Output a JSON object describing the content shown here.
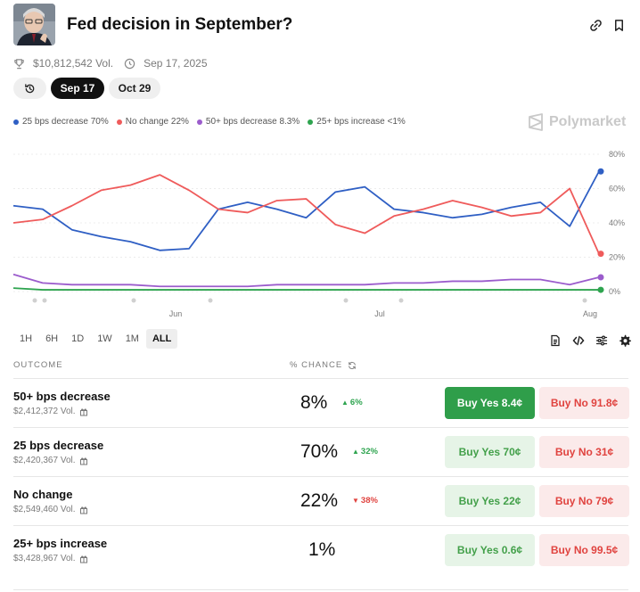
{
  "market": {
    "title": "Fed decision in September?",
    "volume": "$10,812,542 Vol.",
    "end_date": "Sep 17, 2025"
  },
  "date_tabs": [
    "Sep 17",
    "Oct 29"
  ],
  "legend": [
    {
      "label": "25 bps decrease 70%",
      "color": "#2f5fc4"
    },
    {
      "label": "No change 22%",
      "color": "#ef5b5b"
    },
    {
      "label": "50+ bps decrease 8.3%",
      "color": "#9b5ccc"
    },
    {
      "label": "25+ bps increase <1%",
      "color": "#2ea44f"
    }
  ],
  "brand": "Polymarket",
  "range_buttons": [
    "1H",
    "6H",
    "1D",
    "1W",
    "1M",
    "ALL"
  ],
  "range_active": "ALL",
  "table": {
    "col_outcome": "OUTCOME",
    "col_chance": "% CHANCE",
    "rows": [
      {
        "name": "50+ bps decrease",
        "volume": "$2,412,372 Vol.",
        "chance": "8%",
        "change": "6%",
        "direction": "up",
        "yes_label": "Buy Yes 8.4¢",
        "no_label": "Buy No 91.8¢"
      },
      {
        "name": "25 bps decrease",
        "volume": "$2,420,367 Vol.",
        "chance": "70%",
        "change": "32%",
        "direction": "up",
        "yes_label": "Buy Yes 70¢",
        "no_label": "Buy No 31¢"
      },
      {
        "name": "No change",
        "volume": "$2,549,460 Vol.",
        "chance": "22%",
        "change": "38%",
        "direction": "down",
        "yes_label": "Buy Yes 22¢",
        "no_label": "Buy No 79¢"
      },
      {
        "name": "25+ bps increase",
        "volume": "$3,428,967 Vol.",
        "chance": "1%",
        "change": "",
        "direction": "",
        "yes_label": "Buy Yes 0.6¢",
        "no_label": "Buy No 99.5¢"
      }
    ]
  },
  "chart_data": {
    "type": "line",
    "x_tick_labels": [
      "Jun",
      "Jul",
      "Aug"
    ],
    "y_tick_labels": [
      "80%",
      "60%",
      "40%",
      "20%",
      "0%"
    ],
    "ylim": [
      0,
      80
    ],
    "grid": true,
    "x": [
      0,
      5,
      10,
      15,
      20,
      25,
      30,
      35,
      40,
      45,
      50,
      55,
      60,
      65,
      70,
      75,
      80,
      85,
      90,
      95,
      100
    ],
    "series": [
      {
        "name": "25 bps decrease",
        "color": "#2f5fc4",
        "values": [
          50,
          48,
          36,
          32,
          29,
          24,
          25,
          48,
          52,
          48,
          43,
          58,
          61,
          48,
          46,
          43,
          45,
          49,
          52,
          38,
          70
        ]
      },
      {
        "name": "No change",
        "color": "#ef5b5b",
        "values": [
          40,
          42,
          50,
          59,
          62,
          68,
          59,
          48,
          46,
          53,
          54,
          39,
          34,
          44,
          48,
          53,
          49,
          44,
          46,
          60,
          22
        ]
      },
      {
        "name": "50+ bps decrease",
        "color": "#9b5ccc",
        "values": [
          10,
          5,
          4,
          4,
          4,
          3,
          3,
          3,
          3,
          4,
          4,
          4,
          4,
          5,
          5,
          6,
          6,
          7,
          7,
          4,
          8.3
        ]
      },
      {
        "name": "25+ bps increase",
        "color": "#2ea44f",
        "values": [
          2,
          1,
          1,
          1,
          1,
          1,
          1,
          1,
          1,
          1,
          1,
          1,
          1,
          1,
          1,
          1,
          1,
          1,
          1,
          1,
          1
        ]
      }
    ]
  }
}
